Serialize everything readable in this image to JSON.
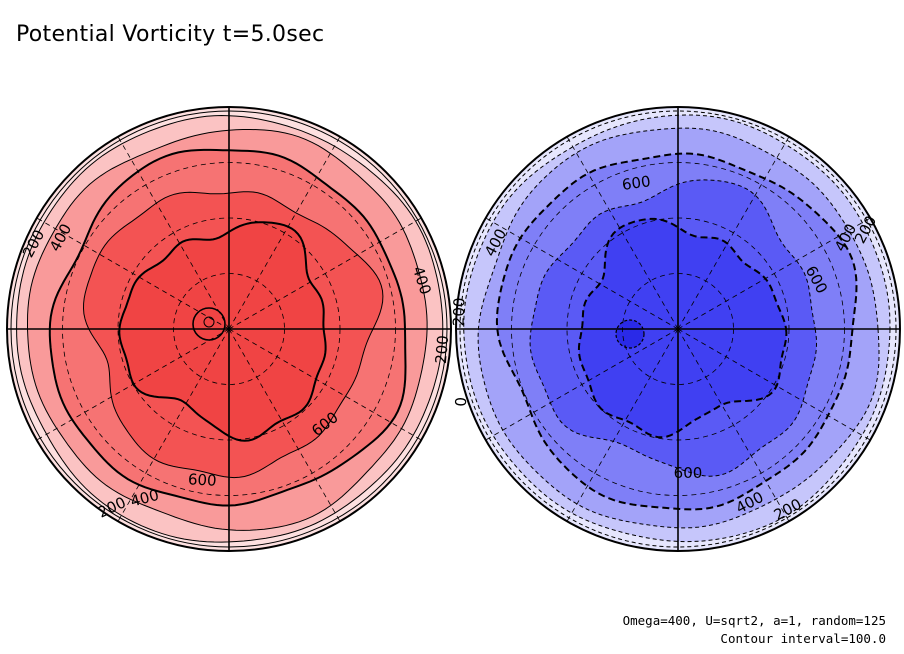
{
  "title": "Potential Vorticity t=5.0sec",
  "footer": {
    "params": "Omega=400, U=sqrt2, a=1, random=125",
    "contour_interval": "Contour interval=100.0"
  },
  "colors": {
    "north": [
      "#fde0e0",
      "#fbc3c3",
      "#f99a9a",
      "#f67373",
      "#f35353",
      "#f04444"
    ],
    "south": [
      "#e6e6fd",
      "#c6c6fb",
      "#a3a3f9",
      "#7f7ff7",
      "#5a5af5",
      "#4040f2",
      "#2a2ae8"
    ]
  },
  "chart_data": [
    {
      "type": "contour",
      "panel": "north hemisphere",
      "projection": "polar",
      "levels": [
        100,
        200,
        300,
        400,
        500,
        600,
        700
      ],
      "contour_labels": [
        "200",
        "400",
        "200",
        "400",
        "600",
        "600",
        "400",
        "200"
      ],
      "line_style": "solid (positive)"
    },
    {
      "type": "contour",
      "panel": "south hemisphere",
      "projection": "polar",
      "levels": [
        -100,
        -200,
        -300,
        -400,
        -500,
        -600,
        -700,
        -800
      ],
      "contour_labels": [
        "600",
        "200",
        "400",
        "400",
        "600",
        "200",
        "600",
        "400",
        "200",
        "0"
      ],
      "line_style": "dashed (negative)"
    }
  ]
}
